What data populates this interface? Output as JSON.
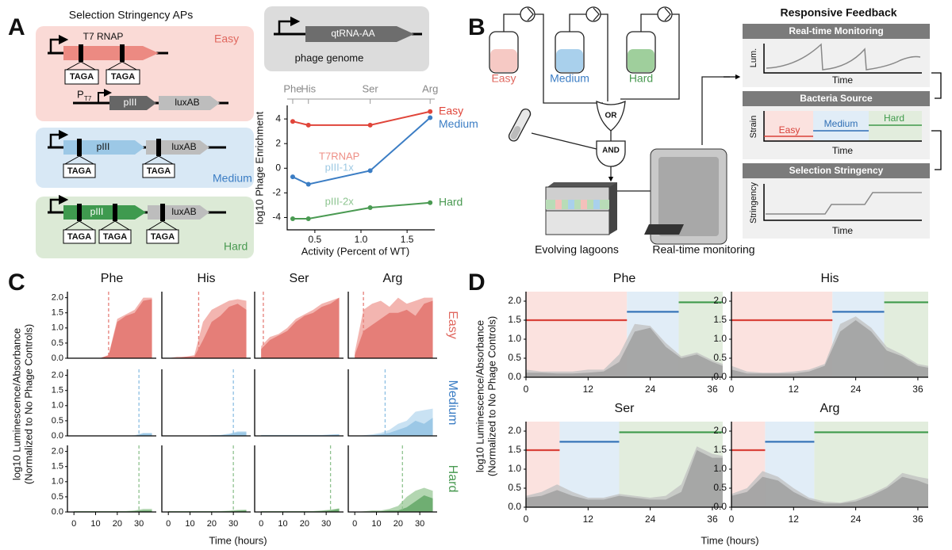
{
  "panel_a": {
    "label": "A",
    "title": "Selection Stringency APs",
    "easy_box": {
      "name": "Easy",
      "gene": "T7 RNAP",
      "tags": [
        "TAGA",
        "TAGA"
      ],
      "promoter": "P",
      "promoter_sub": "T7",
      "genes": [
        "pIII",
        "luxAB"
      ]
    },
    "medium_box": {
      "name": "Medium",
      "genes": [
        "pIII",
        "luxAB"
      ],
      "tags": [
        "TAGA",
        "TAGA"
      ]
    },
    "hard_box": {
      "name": "Hard",
      "genes": [
        "pIII",
        "luxAB"
      ],
      "tags": [
        "TAGA",
        "TAGA",
        "TAGA"
      ]
    },
    "phage": {
      "gene": "qtRNA-AA",
      "label": "phage genome"
    }
  },
  "panel_b": {
    "label": "B",
    "bottles": [
      "Easy",
      "Medium",
      "Hard"
    ],
    "or_gate": "OR",
    "and_gate": "AND",
    "lagoons": "Evolving lagoons",
    "monitor": "Real-time monitoring",
    "feedback": {
      "title": "Responsive Feedback",
      "monitoring": {
        "title": "Real-time Monitoring",
        "ylabel": "Lum.",
        "xlabel": "Time"
      },
      "source": {
        "title": "Bacteria Source",
        "ylabel": "Strain",
        "levels": [
          "Easy",
          "Medium",
          "Hard"
        ],
        "xlabel": "Time"
      },
      "stringency": {
        "title": "Selection Stringency",
        "ylabel": "Stringency",
        "xlabel": "Time"
      }
    }
  },
  "chart_data": [
    {
      "type": "line",
      "ylabel": "log10 Phage Enrichment",
      "xlabel": "Activity  (Percent of WT)",
      "x": [
        0.26,
        0.43,
        1.1,
        1.75
      ],
      "xlim": [
        0.2,
        1.8
      ],
      "xticks": [
        0.5,
        {
          "value": 1,
          "label": "1.0"
        },
        1.5
      ],
      "x2ticks": [
        {
          "value": 0.26,
          "label": "Phe"
        },
        {
          "value": 0.43,
          "label": "His"
        },
        {
          "value": 1.1,
          "label": "Ser"
        },
        {
          "value": 1.75,
          "label": "Arg"
        }
      ],
      "ylim": [
        -5,
        5.1
      ],
      "yticks": [
        -4,
        -2,
        0,
        2,
        4
      ],
      "series": [
        {
          "name": "Easy",
          "color": "#e0453a",
          "annotation": "T7RNAP",
          "annotation_color": "#ee8f86",
          "values": [
            3.8,
            3.5,
            3.5,
            4.6
          ]
        },
        {
          "name": "Medium",
          "color": "#3b7dc4",
          "annotation": "pIII-1x",
          "annotation_color": "#9cc8e3",
          "values": [
            -0.7,
            -1.3,
            -0.2,
            4.1
          ]
        },
        {
          "name": "Hard",
          "color": "#4a9a52",
          "annotation": "pIII-2x",
          "annotation_color": "#8cc48f",
          "values": [
            -4.1,
            -4.1,
            -3.2,
            -2.8
          ]
        }
      ]
    },
    {
      "type": "area",
      "label": "C",
      "columns": [
        "Phe",
        "His",
        "Ser",
        "Arg"
      ],
      "ylabel": [
        "log10 Luminescence/Absorbance",
        "(Normalized to No Phage Controls)"
      ],
      "xlabel": "Time (hours)",
      "x": [
        0,
        4,
        8,
        12,
        16,
        20,
        24,
        28,
        32,
        36
      ],
      "xlim": [
        -3,
        38
      ],
      "xticks": [
        0,
        10,
        20,
        30
      ],
      "ylim": [
        0,
        2.2
      ],
      "yticks": [
        {
          "value": 0,
          "label": "0.0"
        },
        0.5,
        {
          "value": 1,
          "label": "1.0"
        },
        1.5,
        {
          "value": 2,
          "label": "2.0"
        }
      ],
      "rows": [
        {
          "name": "Easy",
          "label_color": "#e0685f",
          "color": "#e57e78",
          "light_color": "#f3b5b0",
          "marker_color": "#e57e78",
          "panels": [
            {
              "values": [
                0,
                0,
                0,
                0,
                0.1,
                1.2,
                1.4,
                1.5,
                1.9,
                1.95
              ],
              "values_light": [
                0,
                0,
                0,
                0,
                0.1,
                1.3,
                1.45,
                1.6,
                2.0,
                2.0
              ],
              "marker": 16
            },
            {
              "values": [
                0,
                0,
                0.05,
                0.05,
                0.6,
                1.2,
                1.4,
                1.7,
                1.8,
                1.6
              ],
              "values_light": [
                0,
                0.05,
                0.05,
                0.1,
                1.2,
                1.6,
                1.75,
                1.9,
                1.95,
                1.9
              ],
              "marker": 14
            },
            {
              "values": [
                0.3,
                0.6,
                0.75,
                0.9,
                1.2,
                1.4,
                1.5,
                1.7,
                1.8,
                2.0
              ],
              "values_light": [
                0.4,
                0.7,
                0.8,
                1.0,
                1.3,
                1.45,
                1.6,
                1.8,
                1.9,
                2.0
              ],
              "marker": 1
            },
            {
              "values": [
                0.1,
                0.9,
                1.1,
                1.3,
                1.5,
                1.5,
                1.6,
                1.4,
                1.8,
                1.9
              ],
              "values_light": [
                0.2,
                1.6,
                1.8,
                1.9,
                1.7,
                2.0,
                1.8,
                1.9,
                2.0,
                2.0
              ],
              "marker": 4
            }
          ]
        },
        {
          "name": "Medium",
          "label_color": "#3b7dc4",
          "color": "#9cc8e6",
          "light_color": "#c9e2f3",
          "marker_color": "#8dbfe3",
          "panels": [
            {
              "values": [
                0,
                0,
                0,
                0,
                0,
                0,
                0,
                0,
                0.08,
                0.08
              ],
              "values_light": [
                0,
                0,
                0,
                0,
                0,
                0,
                0,
                0.02,
                0.1,
                0.1
              ],
              "marker": 30
            },
            {
              "values": [
                0,
                0,
                0,
                0,
                0,
                0.02,
                0.02,
                0.05,
                0.12,
                0.12
              ],
              "values_light": [
                0,
                0,
                0,
                0,
                0,
                0.02,
                0.03,
                0.08,
                0.15,
                0.15
              ],
              "marker": 30
            },
            {
              "values": [
                0.02,
                0.02,
                0.02,
                0.02,
                0.02,
                0.02,
                0.02,
                0.02,
                0.03,
                0.05
              ],
              "values_light": [
                0.03,
                0.03,
                0.03,
                0.03,
                0.03,
                0.03,
                0.03,
                0.03,
                0.05,
                0.06
              ],
              "marker": null
            },
            {
              "values": [
                0,
                0,
                0.02,
                0.05,
                0.1,
                0.2,
                0.3,
                0.5,
                0.4,
                0.6
              ],
              "values_light": [
                0,
                0.02,
                0.05,
                0.1,
                0.2,
                0.4,
                0.5,
                0.8,
                0.85,
                0.9
              ],
              "marker": 14
            }
          ]
        },
        {
          "name": "Hard",
          "label_color": "#4a9a52",
          "color": "#6fae72",
          "light_color": "#b3d6b1",
          "marker_color": "#8fc28f",
          "panels": [
            {
              "values": [
                0.02,
                0.02,
                0.02,
                0.02,
                0.02,
                0.02,
                0.02,
                0.03,
                0.05,
                0.05
              ],
              "values_light": [
                0.03,
                0.03,
                0.03,
                0.03,
                0.03,
                0.03,
                0.03,
                0.05,
                0.1,
                0.1
              ],
              "marker": 30
            },
            {
              "values": [
                0.02,
                0.02,
                0.02,
                0.02,
                0.02,
                0.02,
                0.02,
                0.03,
                0.04,
                0.05
              ],
              "values_light": [
                0.03,
                0.03,
                0.03,
                0.03,
                0.03,
                0.03,
                0.03,
                0.04,
                0.07,
                0.08
              ],
              "marker": 30
            },
            {
              "values": [
                0.02,
                0.02,
                0.02,
                0.02,
                0.02,
                0.02,
                0.02,
                0.03,
                0.05,
                0.1
              ],
              "values_light": [
                0.03,
                0.03,
                0.03,
                0.03,
                0.03,
                0.03,
                0.03,
                0.05,
                0.08,
                0.12
              ],
              "marker": 32
            },
            {
              "values": [
                0,
                0,
                0.02,
                0.02,
                0.05,
                0.05,
                0.15,
                0.35,
                0.55,
                0.45
              ],
              "values_light": [
                0,
                0.02,
                0.05,
                0.05,
                0.1,
                0.2,
                0.5,
                0.7,
                0.8,
                0.7
              ],
              "marker": 22
            }
          ]
        }
      ]
    },
    {
      "type": "area",
      "label": "D",
      "ylabel": [
        "log10 Luminescence/Absorbance",
        "(Normalized to No Phage Controls)"
      ],
      "xlabel": "Time (hours)",
      "x": [
        0,
        3,
        6,
        9,
        12,
        15,
        18,
        21,
        24,
        27,
        30,
        33,
        36,
        38
      ],
      "xlim": [
        0,
        38
      ],
      "xticks": [
        0,
        12,
        24,
        36
      ],
      "ylim": [
        0,
        2.25
      ],
      "yticks": [
        {
          "value": 0,
          "label": "0.0"
        },
        0.5,
        {
          "value": 1,
          "label": "1.0"
        },
        1.5,
        {
          "value": 2,
          "label": "2.0"
        }
      ],
      "color": "#9e9e9e",
      "light_color": "#c2c2c2",
      "levels": [
        1.5,
        1.72,
        1.97
      ],
      "level_colors": [
        "#d9423a",
        "#2f6fb5",
        "#3f9a4b"
      ],
      "region_colors": [
        "#fbe2df",
        "#e1edf7",
        "#e2eddd"
      ],
      "panels": [
        {
          "title": "Phe",
          "switch": [
            19.5,
            29.5
          ],
          "values": [
            0.12,
            0.12,
            0.1,
            0.1,
            0.12,
            0.15,
            0.4,
            1.2,
            1.3,
            0.8,
            0.5,
            0.6,
            0.4,
            0.3
          ],
          "values_light": [
            0.2,
            0.15,
            0.15,
            0.15,
            0.2,
            0.2,
            0.6,
            1.4,
            1.35,
            0.9,
            0.55,
            0.65,
            0.45,
            0.35
          ]
        },
        {
          "title": "His",
          "switch": [
            19.5,
            29.5
          ],
          "values": [
            0.2,
            0.1,
            0.1,
            0.1,
            0.1,
            0.15,
            0.3,
            1.2,
            1.5,
            1.2,
            0.7,
            0.55,
            0.3,
            0.25
          ],
          "values_light": [
            0.3,
            0.15,
            0.12,
            0.12,
            0.15,
            0.2,
            0.35,
            1.4,
            1.6,
            1.3,
            0.8,
            0.6,
            0.35,
            0.3
          ]
        },
        {
          "title": "Ser",
          "switch": [
            6.5,
            18
          ],
          "values": [
            0.25,
            0.3,
            0.45,
            0.3,
            0.2,
            0.2,
            0.3,
            0.25,
            0.2,
            0.2,
            0.4,
            1.5,
            1.3,
            1.3
          ],
          "values_light": [
            0.3,
            0.4,
            0.6,
            0.4,
            0.25,
            0.25,
            0.35,
            0.3,
            0.25,
            0.3,
            0.6,
            1.6,
            1.4,
            1.35
          ]
        },
        {
          "title": "Arg",
          "switch": [
            6.5,
            16
          ],
          "values": [
            0.3,
            0.4,
            0.8,
            0.7,
            0.4,
            0.2,
            0.1,
            0.1,
            0.15,
            0.3,
            0.5,
            0.8,
            0.7,
            0.6
          ],
          "values_light": [
            0.35,
            0.5,
            0.95,
            0.8,
            0.5,
            0.25,
            0.15,
            0.12,
            0.2,
            0.35,
            0.55,
            0.9,
            0.8,
            0.75
          ]
        }
      ]
    }
  ]
}
